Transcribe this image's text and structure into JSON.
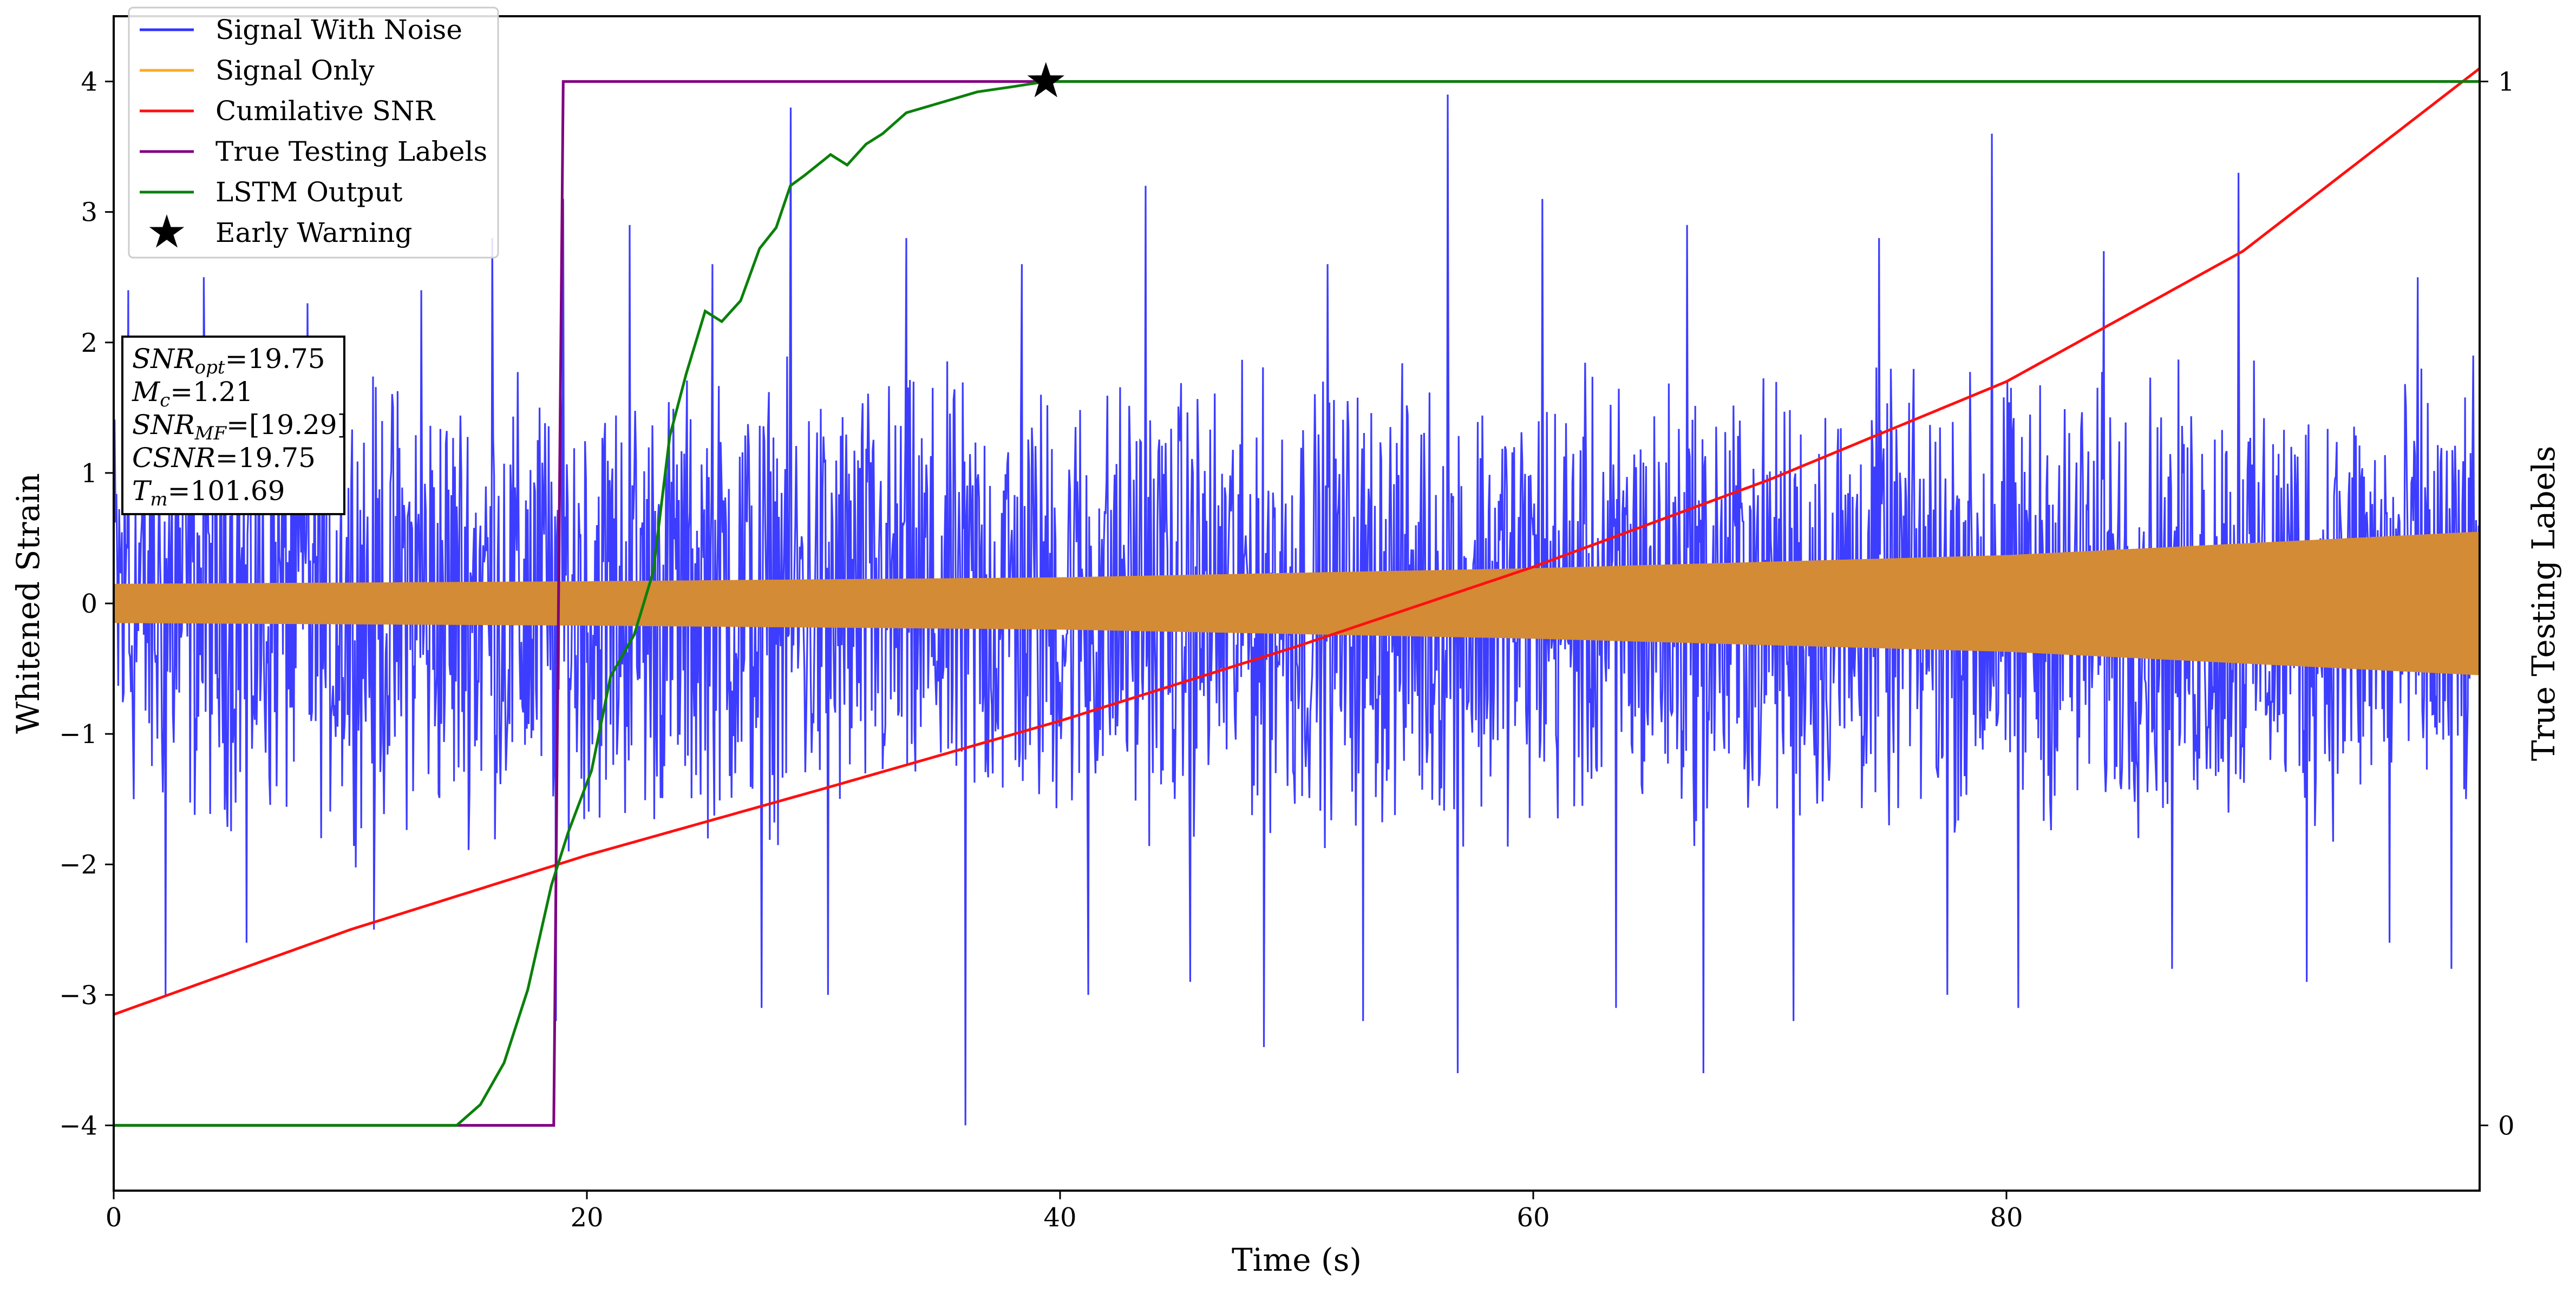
{
  "chart_data": {
    "type": "line",
    "xlabel": "Time (s)",
    "ylabel": "Whitened Strain",
    "y2label": "True Testing Labels",
    "xlim": [
      0,
      100
    ],
    "ylim": [
      -4.5,
      4.5
    ],
    "y2lim": [
      -0.0625,
      1.0625
    ],
    "x_ticks": [
      0,
      20,
      40,
      60,
      80
    ],
    "y_ticks": [
      -4,
      -3,
      -2,
      -1,
      0,
      1,
      2,
      3,
      4
    ],
    "y_tick_labels": [
      "−4",
      "−3",
      "−2",
      "−1",
      "0",
      "1",
      "2",
      "3",
      "4"
    ],
    "y2_ticks": [
      0,
      1
    ],
    "y2_tick_labels": [
      "0",
      "1"
    ],
    "legend_position": "top-left",
    "legend": [
      {
        "label": "Signal With Noise",
        "color": "#3333ff",
        "marker": "line"
      },
      {
        "label": "Signal Only",
        "color": "#ffaa22",
        "marker": "line"
      },
      {
        "label": "Cumilative SNR",
        "color": "#ff1010",
        "marker": "line"
      },
      {
        "label": "True Testing Labels",
        "color": "#800080",
        "marker": "line"
      },
      {
        "label": "LSTM Output",
        "color": "#0a800a",
        "marker": "line"
      },
      {
        "label": "Early Warning",
        "color": "#000000",
        "marker": "star"
      }
    ],
    "info_box": [
      {
        "main": "SNR",
        "sub": "opt",
        "value": "=19.75"
      },
      {
        "main": "M",
        "sub": "c",
        "value": "=1.21"
      },
      {
        "main": "SNR",
        "sub": "MF",
        "value": "=[19.29]"
      },
      {
        "main": "CSNR",
        "sub": "",
        "value": "=19.75"
      },
      {
        "main": "T",
        "sub": "m",
        "value": "=101.69"
      }
    ],
    "series": [
      {
        "name": "Signal With Noise",
        "axis": "left",
        "color": "#3333ff",
        "style": "noise-band",
        "typical_range": [
          -2.0,
          2.0
        ],
        "spikes": [
          {
            "x": 0.6,
            "y": 2.4
          },
          {
            "x": 2.2,
            "y": -3.0
          },
          {
            "x": 3.8,
            "y": 2.5
          },
          {
            "x": 5.6,
            "y": -2.6
          },
          {
            "x": 8.2,
            "y": 2.3
          },
          {
            "x": 11.0,
            "y": -2.5
          },
          {
            "x": 13.0,
            "y": 2.4
          },
          {
            "x": 16.0,
            "y": 2.8
          },
          {
            "x": 18.7,
            "y": -3.2
          },
          {
            "x": 19.0,
            "y": 3.1
          },
          {
            "x": 21.8,
            "y": 2.9
          },
          {
            "x": 25.3,
            "y": 2.6
          },
          {
            "x": 27.4,
            "y": -3.1
          },
          {
            "x": 28.6,
            "y": 3.8
          },
          {
            "x": 30.2,
            "y": -3.0
          },
          {
            "x": 33.5,
            "y": 2.8
          },
          {
            "x": 36.0,
            "y": -4.0
          },
          {
            "x": 38.4,
            "y": 2.6
          },
          {
            "x": 41.2,
            "y": -3.0
          },
          {
            "x": 43.6,
            "y": 3.2
          },
          {
            "x": 45.5,
            "y": -2.9
          },
          {
            "x": 48.6,
            "y": -3.4
          },
          {
            "x": 51.3,
            "y": 2.6
          },
          {
            "x": 52.8,
            "y": -3.2
          },
          {
            "x": 56.4,
            "y": 3.9
          },
          {
            "x": 56.8,
            "y": -3.6
          },
          {
            "x": 60.4,
            "y": 3.1
          },
          {
            "x": 63.5,
            "y": -3.1
          },
          {
            "x": 66.5,
            "y": 2.9
          },
          {
            "x": 67.2,
            "y": -3.6
          },
          {
            "x": 71.0,
            "y": -3.2
          },
          {
            "x": 74.6,
            "y": 2.8
          },
          {
            "x": 77.5,
            "y": -3.0
          },
          {
            "x": 79.4,
            "y": 3.6
          },
          {
            "x": 80.5,
            "y": -3.1
          },
          {
            "x": 84.1,
            "y": 2.7
          },
          {
            "x": 87.0,
            "y": -2.8
          },
          {
            "x": 89.8,
            "y": 3.3
          },
          {
            "x": 92.7,
            "y": -2.9
          },
          {
            "x": 96.2,
            "y": -2.6
          },
          {
            "x": 97.4,
            "y": 2.5
          },
          {
            "x": 98.8,
            "y": -2.8
          }
        ]
      },
      {
        "name": "Signal Only",
        "axis": "left",
        "color": "#d38b35",
        "style": "envelope",
        "x": [
          0,
          20,
          40,
          60,
          80,
          100
        ],
        "amplitude": [
          0.15,
          0.17,
          0.2,
          0.27,
          0.37,
          0.55
        ]
      },
      {
        "name": "Cumilative SNR",
        "axis": "left",
        "color": "#ff1010",
        "x": [
          0,
          10,
          20,
          30,
          40,
          50,
          60,
          70,
          80,
          90,
          100
        ],
        "y": [
          -3.15,
          -2.5,
          -1.93,
          -1.42,
          -0.9,
          -0.33,
          0.28,
          0.95,
          1.7,
          2.7,
          4.1
        ]
      },
      {
        "name": "True Testing Labels",
        "axis": "right",
        "color": "#800080",
        "x": [
          0,
          18.6,
          19.0,
          100
        ],
        "y": [
          0,
          0,
          1,
          1
        ]
      },
      {
        "name": "LSTM Output",
        "axis": "right",
        "color": "#0a800a",
        "x": [
          0,
          14.5,
          15.5,
          16.5,
          17.5,
          18.5,
          19.2,
          20.2,
          21.0,
          22.0,
          22.8,
          23.5,
          24.2,
          25.0,
          25.7,
          26.5,
          27.3,
          28.0,
          28.6,
          29.2,
          30.3,
          31.0,
          31.8,
          32.5,
          33.5,
          35.0,
          36.5,
          38.0,
          39.4,
          45.0,
          50.0,
          100.0
        ],
        "y": [
          0,
          0,
          0.02,
          0.06,
          0.13,
          0.23,
          0.28,
          0.34,
          0.43,
          0.47,
          0.53,
          0.66,
          0.72,
          0.78,
          0.77,
          0.79,
          0.84,
          0.86,
          0.9,
          0.91,
          0.93,
          0.92,
          0.94,
          0.95,
          0.97,
          0.98,
          0.99,
          0.995,
          1.0,
          1.0,
          1.0,
          1.0
        ]
      }
    ],
    "annotations": [
      {
        "type": "star",
        "label": "Early Warning",
        "x": 39.4,
        "y2": 1.0,
        "color": "#000000"
      }
    ]
  }
}
